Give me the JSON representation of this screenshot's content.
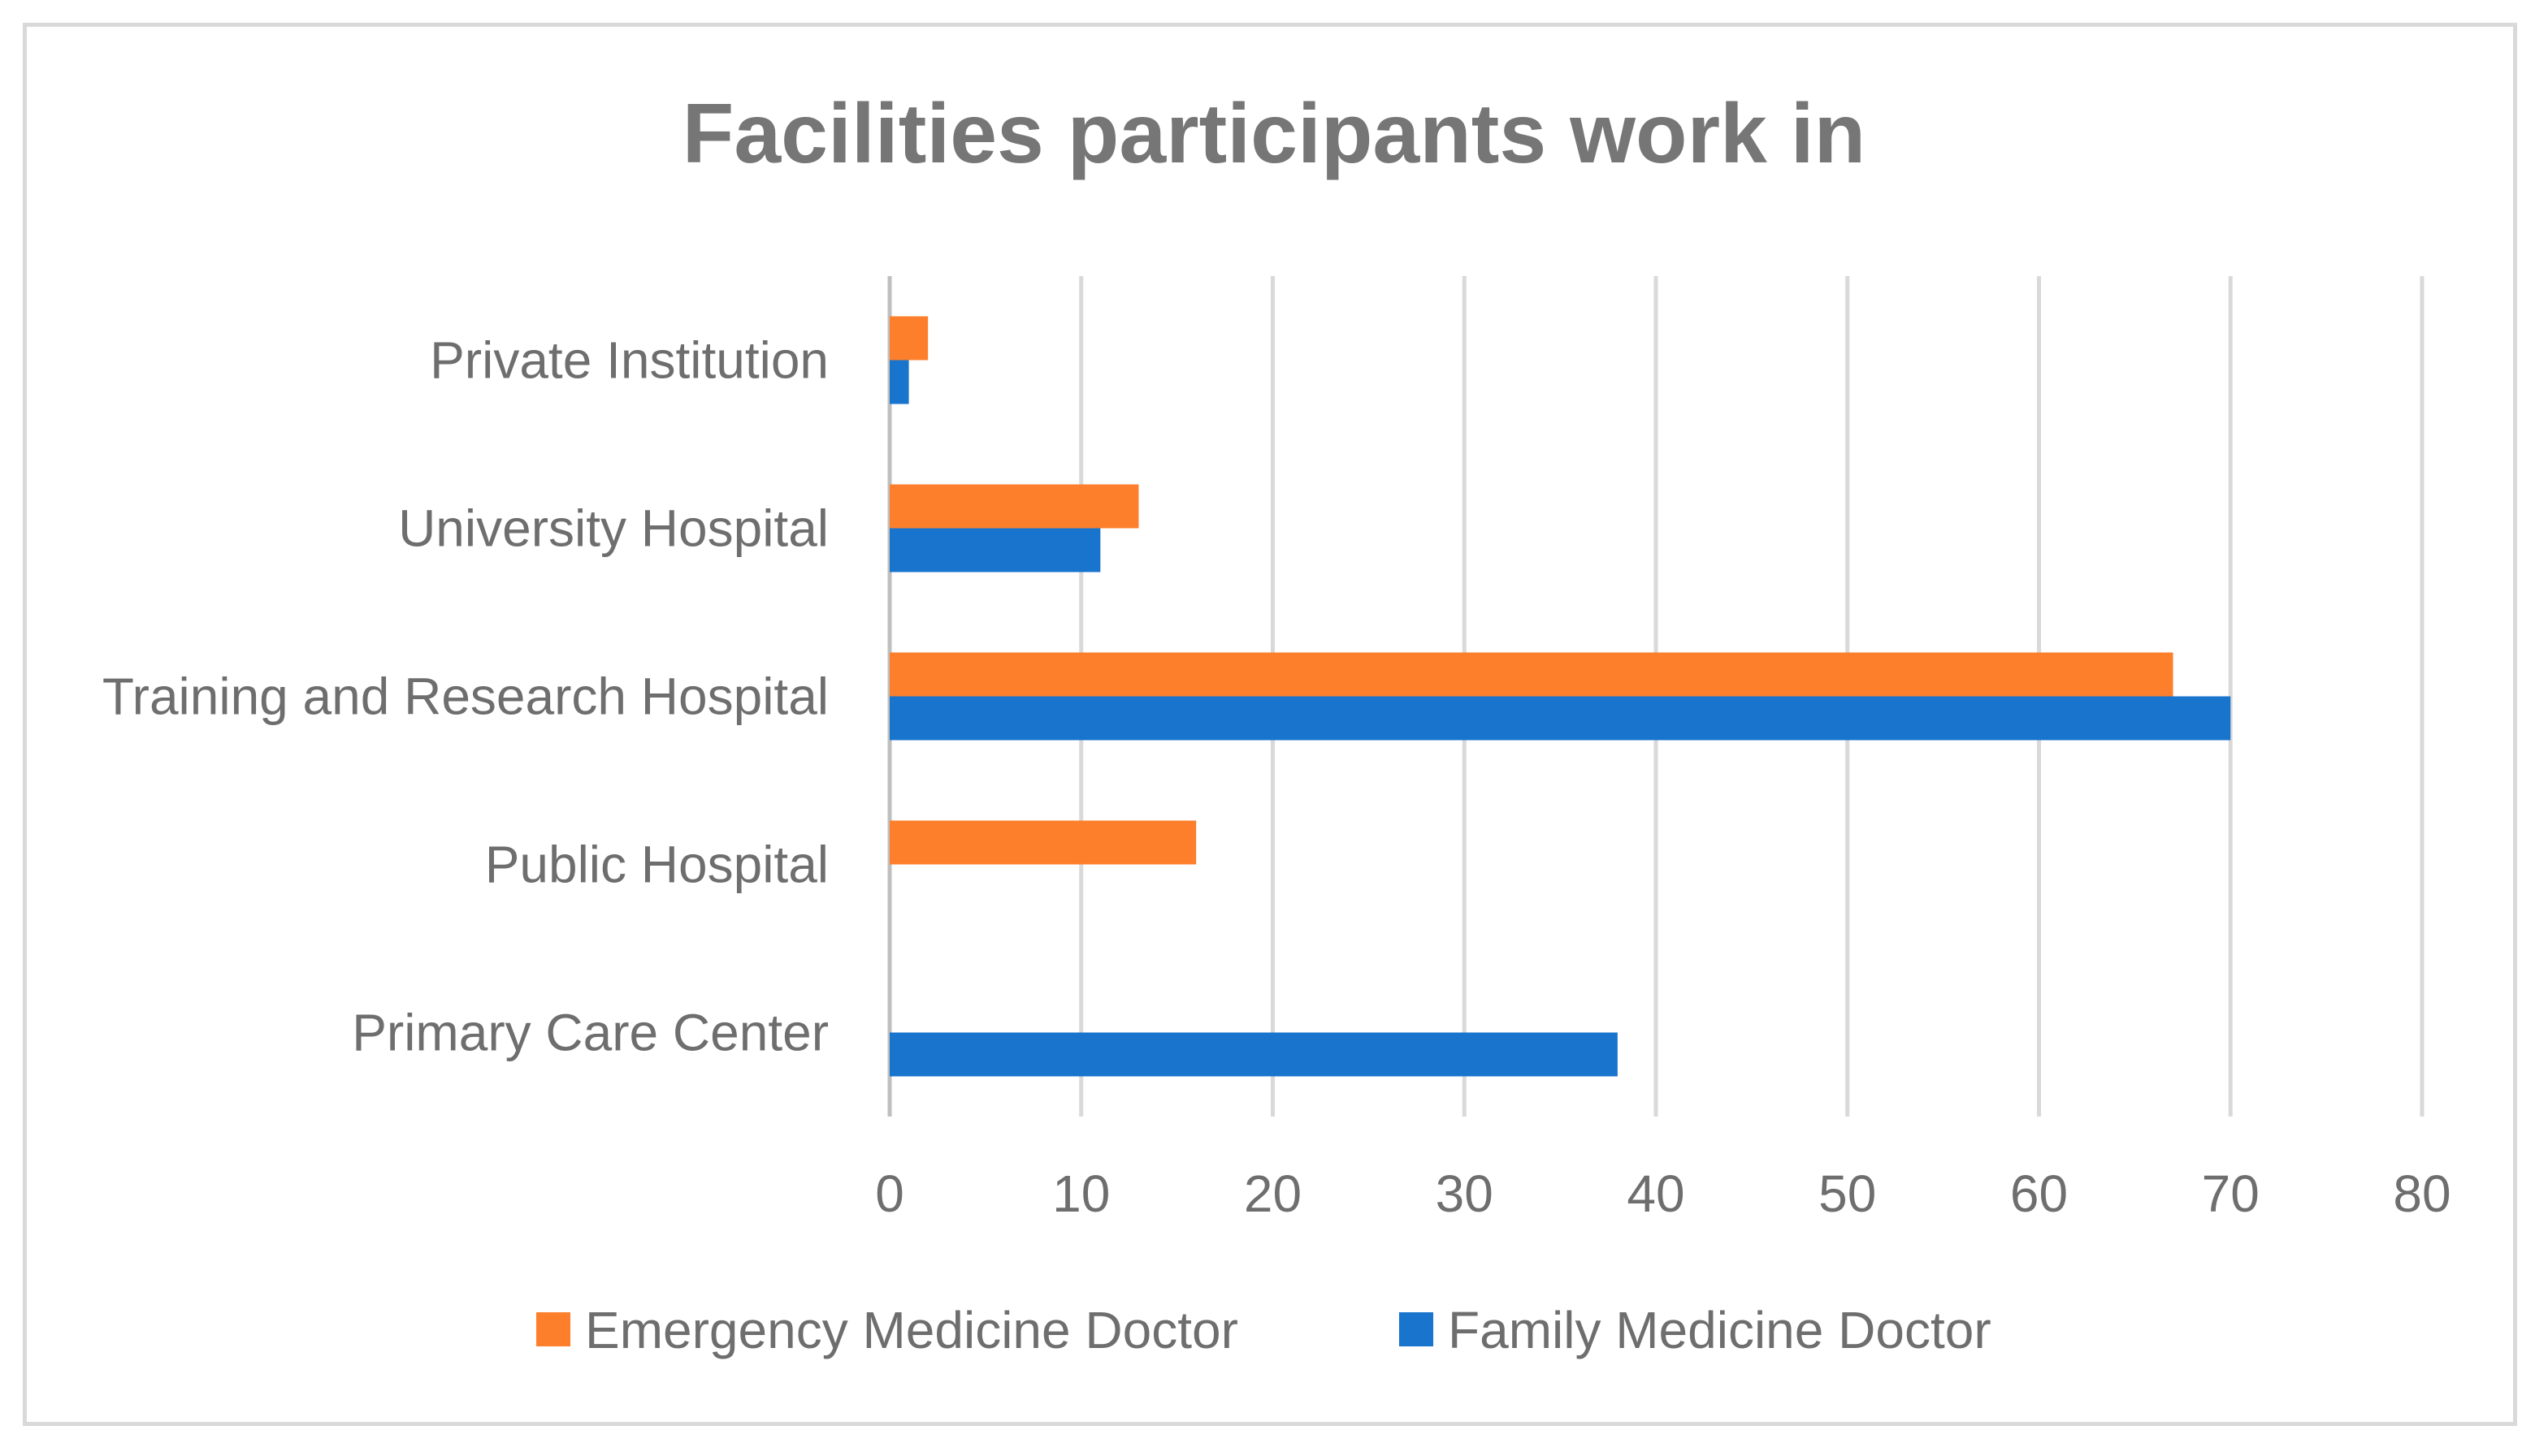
{
  "chart_data": {
    "type": "bar",
    "orientation": "horizontal",
    "title": "Facilities participants work in",
    "categories": [
      "Primary Care Center",
      "Public Hospital",
      "Training and Research Hospital",
      "University Hospital",
      "Private Institution"
    ],
    "series": [
      {
        "name": "Emergency Medicine Doctor",
        "color": "#fd7f2c",
        "values": [
          0,
          16,
          67,
          13,
          2
        ]
      },
      {
        "name": "Family Medicine Doctor",
        "color": "#1874cd",
        "values": [
          38,
          0,
          70,
          11,
          1
        ]
      }
    ],
    "xlim": [
      0,
      80
    ],
    "xticks": [
      "0",
      "10",
      "20",
      "30",
      "40",
      "50",
      "60",
      "70",
      "80"
    ],
    "grid": true,
    "legend_position": "bottom"
  }
}
